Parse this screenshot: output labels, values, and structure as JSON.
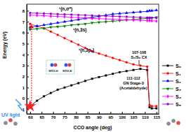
{
  "chart_data": {
    "type": "line",
    "x_label": "CCO angle (deg)",
    "y_label": "Energy (eV)",
    "x": [
      60,
      63,
      66,
      69,
      72,
      75,
      78,
      81,
      84,
      87,
      90,
      93,
      96,
      99,
      102,
      105,
      108,
      111,
      112,
      113,
      115
    ],
    "xlim": [
      58.5,
      116
    ],
    "xticks": [
      60,
      65,
      70,
      75,
      80,
      85,
      90,
      95,
      100,
      105,
      110,
      115
    ],
    "ylim": [
      -1.4,
      8.6
    ],
    "yticks": [
      -1,
      0,
      1,
      2,
      3,
      4,
      5,
      6,
      7,
      8
    ],
    "legend": "right",
    "series": [
      {
        "name": "S₀",
        "color": "#000000",
        "marker": "square",
        "values": [
          -0.7,
          -0.2,
          0.2,
          0.5,
          0.8,
          1.0,
          1.2,
          1.4,
          1.6,
          1.8,
          1.95,
          2.1,
          2.25,
          2.4,
          2.5,
          2.6,
          2.7,
          2.6,
          -0.8,
          -0.9,
          -0.9
        ]
      },
      {
        "name": "S₁",
        "color": "#ff0000",
        "marker": "circle",
        "values": [
          6.8,
          6.6,
          6.4,
          6.1,
          5.8,
          5.5,
          5.2,
          4.9,
          4.6,
          4.3,
          4.1,
          3.9,
          3.7,
          3.5,
          3.3,
          3.1,
          3.0,
          2.9,
          -0.6,
          -0.7,
          -0.7
        ]
      },
      {
        "name": "S₂",
        "color": "#0000ff",
        "marker": "triangle",
        "values": [
          6.5,
          6.6,
          6.7,
          6.8,
          6.9,
          7.0,
          7.1,
          7.2,
          7.3,
          7.4,
          7.5,
          7.6,
          7.7,
          7.75,
          7.8,
          7.85,
          7.9,
          7.95,
          8.0,
          8.0,
          8.05
        ]
      },
      {
        "name": "S₃",
        "color": "#008000",
        "marker": "triangle-down",
        "values": [
          6.3,
          6.35,
          6.4,
          6.5,
          6.55,
          6.6,
          6.7,
          6.75,
          6.8,
          6.9,
          6.95,
          7.0,
          7.05,
          7.1,
          7.15,
          7.2,
          7.25,
          7.3,
          7.3,
          7.35,
          7.4
        ]
      },
      {
        "name": "S₄",
        "color": "#ff00ff",
        "marker": "diamond",
        "values": [
          7.6,
          7.58,
          7.55,
          7.5,
          7.48,
          7.45,
          7.4,
          7.38,
          7.35,
          7.3,
          7.28,
          7.25,
          7.22,
          7.2,
          7.18,
          7.15,
          7.12,
          7.1,
          7.1,
          7.08,
          7.05
        ]
      },
      {
        "name": "S₅",
        "color": "#9400d3",
        "marker": "circle",
        "values": [
          7.8,
          7.78,
          7.75,
          7.72,
          7.7,
          7.67,
          7.65,
          7.62,
          7.6,
          7.57,
          7.55,
          7.52,
          7.5,
          7.47,
          7.45,
          7.42,
          7.4,
          7.38,
          7.37,
          7.36,
          7.35
        ]
      }
    ],
    "annotations": [
      "¹(n,σ*)",
      "¹(n,3s)",
      "¹(n,3pᵧ)",
      "107-108",
      "S₁/S₀ CX",
      "111-112",
      "GN Stage-3",
      "(Acetaldehyde)",
      "UV light",
      "NTO1-H",
      "NTO1-E"
    ]
  }
}
